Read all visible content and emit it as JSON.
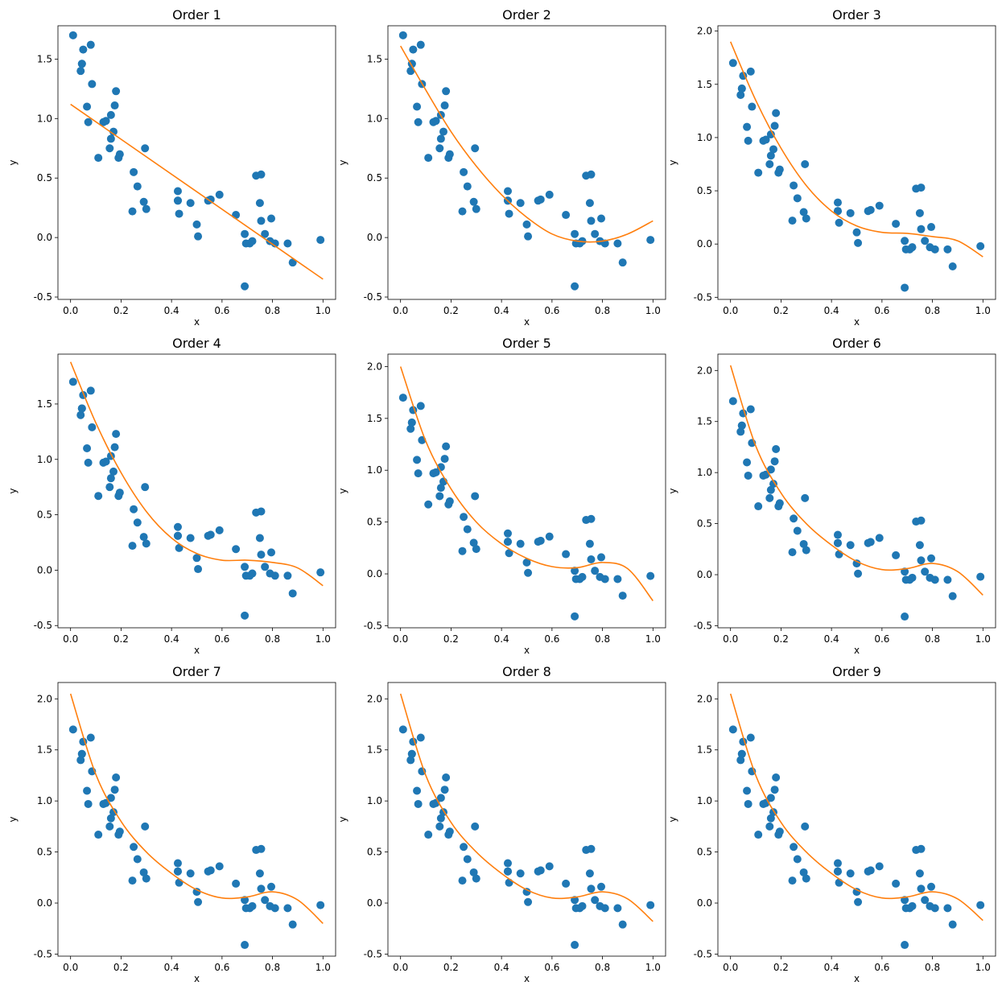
{
  "chart_data": {
    "type": "scatter",
    "colors": {
      "points": "#1f77b4",
      "fit": "#ff7f0e"
    },
    "scatter_points": {
      "x": [
        0.01,
        0.04,
        0.045,
        0.05,
        0.045,
        0.07,
        0.08,
        0.065,
        0.085,
        0.11,
        0.13,
        0.14,
        0.16,
        0.17,
        0.155,
        0.16,
        0.175,
        0.18,
        0.19,
        0.195,
        0.25,
        0.265,
        0.245,
        0.29,
        0.3,
        0.295,
        0.425,
        0.425,
        0.43,
        0.475,
        0.425,
        0.5,
        0.505,
        0.545,
        0.555,
        0.59,
        0.655,
        0.69,
        0.695,
        0.71,
        0.72,
        0.735,
        0.75,
        0.755,
        0.755,
        0.77,
        0.79,
        0.795,
        0.81,
        0.86,
        0.88,
        0.99,
        0.69
      ],
      "y": [
        1.7,
        1.4,
        1.46,
        1.58,
        1.46,
        0.97,
        1.62,
        1.1,
        1.29,
        0.67,
        0.97,
        0.98,
        0.83,
        0.89,
        0.75,
        1.03,
        1.11,
        1.23,
        0.67,
        0.7,
        0.55,
        0.43,
        0.22,
        0.3,
        0.24,
        0.75,
        0.39,
        0.31,
        0.2,
        0.29,
        0.31,
        0.11,
        0.01,
        0.31,
        0.32,
        0.36,
        0.19,
        0.03,
        -0.05,
        -0.05,
        -0.03,
        0.52,
        0.29,
        0.53,
        0.14,
        0.03,
        -0.03,
        0.16,
        -0.05,
        -0.05,
        -0.21,
        -0.02,
        -0.41
      ]
    },
    "panels": [
      {
        "title": "Order 1",
        "xlabel": "x",
        "ylabel": "y",
        "xlim": [
          -0.05,
          1.05
        ],
        "ylim": [
          -0.52,
          1.78
        ],
        "xticks": [
          "0.0",
          "0.2",
          "0.4",
          "0.6",
          "0.8",
          "1.0"
        ],
        "yticks": [
          "-0.5",
          "0.0",
          "0.5",
          "1.0",
          "1.5"
        ],
        "fit": {
          "x": [
            0.0,
            1.0
          ],
          "y": [
            1.12,
            -0.35
          ]
        }
      },
      {
        "title": "Order 2",
        "xlabel": "x",
        "ylabel": "y",
        "xlim": [
          -0.05,
          1.05
        ],
        "ylim": [
          -0.52,
          1.78
        ],
        "xticks": [
          "0.0",
          "0.2",
          "0.4",
          "0.6",
          "0.8",
          "1.0"
        ],
        "yticks": [
          "-0.5",
          "0.0",
          "0.5",
          "1.0",
          "1.5"
        ],
        "fit": {
          "x": [
            0.0,
            0.1,
            0.2,
            0.3,
            0.4,
            0.5,
            0.6,
            0.7,
            0.8,
            0.9,
            1.0
          ],
          "y": [
            1.61,
            1.24,
            0.89,
            0.6,
            0.36,
            0.17,
            0.03,
            -0.03,
            -0.03,
            0.03,
            0.14
          ]
        }
      },
      {
        "title": "Order 3",
        "xlabel": "x",
        "ylabel": "y",
        "xlim": [
          -0.05,
          1.05
        ],
        "ylim": [
          -0.52,
          2.05
        ],
        "xticks": [
          "0.0",
          "0.2",
          "0.4",
          "0.6",
          "0.8",
          "1.0"
        ],
        "yticks": [
          "-0.5",
          "0.0",
          "0.5",
          "1.0",
          "1.5",
          "2.0"
        ],
        "fit": {
          "x": [
            0.0,
            0.1,
            0.2,
            0.3,
            0.4,
            0.5,
            0.6,
            0.7,
            0.8,
            0.9,
            1.0
          ],
          "y": [
            1.9,
            1.35,
            0.9,
            0.55,
            0.31,
            0.17,
            0.11,
            0.1,
            0.07,
            0.03,
            -0.12
          ]
        }
      },
      {
        "title": "Order 4",
        "xlabel": "x",
        "ylabel": "y",
        "xlim": [
          -0.05,
          1.05
        ],
        "ylim": [
          -0.52,
          1.95
        ],
        "xticks": [
          "0.0",
          "0.2",
          "0.4",
          "0.6",
          "0.8",
          "1.0"
        ],
        "yticks": [
          "-0.5",
          "0.0",
          "0.5",
          "1.0",
          "1.5"
        ],
        "fit": {
          "x": [
            0.0,
            0.1,
            0.2,
            0.3,
            0.4,
            0.5,
            0.6,
            0.7,
            0.8,
            0.9,
            1.0
          ],
          "y": [
            1.88,
            1.33,
            0.88,
            0.53,
            0.29,
            0.15,
            0.09,
            0.09,
            0.07,
            0.02,
            -0.14
          ]
        }
      },
      {
        "title": "Order 5",
        "xlabel": "x",
        "ylabel": "y",
        "xlim": [
          -0.05,
          1.05
        ],
        "ylim": [
          -0.52,
          2.12
        ],
        "xticks": [
          "0.0",
          "0.2",
          "0.4",
          "0.6",
          "0.8",
          "1.0"
        ],
        "yticks": [
          "-0.5",
          "0.0",
          "0.5",
          "1.0",
          "1.5",
          "2.0"
        ],
        "fit": {
          "x": [
            0.0,
            0.1,
            0.2,
            0.3,
            0.4,
            0.5,
            0.6,
            0.7,
            0.8,
            0.9,
            1.0
          ],
          "y": [
            2.0,
            1.28,
            0.82,
            0.5,
            0.29,
            0.15,
            0.07,
            0.06,
            0.11,
            0.05,
            -0.26
          ]
        }
      },
      {
        "title": "Order 6",
        "xlabel": "x",
        "ylabel": "y",
        "xlim": [
          -0.05,
          1.05
        ],
        "ylim": [
          -0.52,
          2.16
        ],
        "xticks": [
          "0.0",
          "0.2",
          "0.4",
          "0.6",
          "0.8",
          "1.0"
        ],
        "yticks": [
          "-0.5",
          "0.0",
          "0.5",
          "1.0",
          "1.5",
          "2.0"
        ],
        "fit": {
          "x": [
            0.0,
            0.1,
            0.2,
            0.3,
            0.4,
            0.5,
            0.6,
            0.7,
            0.8,
            0.9,
            1.0
          ],
          "y": [
            2.05,
            1.26,
            0.8,
            0.5,
            0.29,
            0.13,
            0.05,
            0.06,
            0.11,
            0.03,
            -0.2
          ]
        }
      },
      {
        "title": "Order 7",
        "xlabel": "x",
        "ylabel": "y",
        "xlim": [
          -0.05,
          1.05
        ],
        "ylim": [
          -0.52,
          2.16
        ],
        "xticks": [
          "0.0",
          "0.2",
          "0.4",
          "0.6",
          "0.8",
          "1.0"
        ],
        "yticks": [
          "-0.5",
          "0.0",
          "0.5",
          "1.0",
          "1.5",
          "2.0"
        ],
        "fit": {
          "x": [
            0.0,
            0.1,
            0.2,
            0.3,
            0.4,
            0.5,
            0.6,
            0.7,
            0.8,
            0.9,
            1.0
          ],
          "y": [
            2.05,
            1.26,
            0.8,
            0.5,
            0.29,
            0.13,
            0.05,
            0.06,
            0.11,
            0.03,
            -0.2
          ]
        }
      },
      {
        "title": "Order 8",
        "xlabel": "x",
        "ylabel": "y",
        "xlim": [
          -0.05,
          1.05
        ],
        "ylim": [
          -0.52,
          2.16
        ],
        "xticks": [
          "0.0",
          "0.2",
          "0.4",
          "0.6",
          "0.8",
          "1.0"
        ],
        "yticks": [
          "-0.5",
          "0.0",
          "0.5",
          "1.0",
          "1.5",
          "2.0"
        ],
        "fit": {
          "x": [
            0.0,
            0.1,
            0.2,
            0.3,
            0.4,
            0.5,
            0.6,
            0.7,
            0.8,
            0.9,
            1.0
          ],
          "y": [
            2.05,
            1.25,
            0.79,
            0.5,
            0.29,
            0.13,
            0.05,
            0.06,
            0.11,
            0.04,
            -0.18
          ]
        }
      },
      {
        "title": "Order 9",
        "xlabel": "x",
        "ylabel": "y",
        "xlim": [
          -0.05,
          1.05
        ],
        "ylim": [
          -0.52,
          2.16
        ],
        "xticks": [
          "0.0",
          "0.2",
          "0.4",
          "0.6",
          "0.8",
          "1.0"
        ],
        "yticks": [
          "-0.5",
          "0.0",
          "0.5",
          "1.0",
          "1.5",
          "2.0"
        ],
        "fit": {
          "x": [
            0.0,
            0.1,
            0.2,
            0.3,
            0.4,
            0.5,
            0.6,
            0.7,
            0.8,
            0.9,
            1.0
          ],
          "y": [
            2.05,
            1.25,
            0.79,
            0.5,
            0.29,
            0.13,
            0.05,
            0.06,
            0.11,
            0.04,
            -0.17
          ]
        }
      }
    ]
  }
}
